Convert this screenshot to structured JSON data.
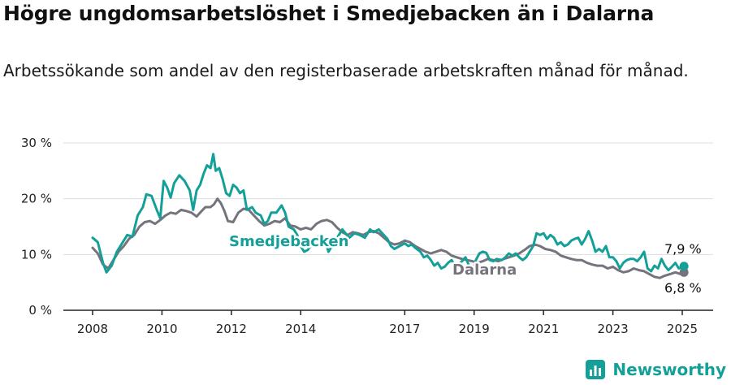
{
  "title": "Högre ungdomsarbetslöshet i Smedjebacken än i Dalarna",
  "subtitle": "Arbetssökande som andel av den registerbaserade arbetskraften månad för månad.",
  "brand": "Newsworthy",
  "colors": {
    "teal": "#14a098",
    "gray": "#77737c",
    "grid": "#dddddd"
  },
  "chart_data": {
    "type": "line",
    "title": "Högre ungdomsarbetslöshet i Smedjebacken än i Dalarna",
    "ylabel": "",
    "xlabel": "",
    "ylim": [
      0,
      30
    ],
    "y_ticks": [
      "0 %",
      "10 %",
      "20 %",
      "30 %"
    ],
    "y_tick_values": [
      0,
      10,
      20,
      30
    ],
    "x_ticks": [
      "2008",
      "2010",
      "2012",
      "2014",
      "2017",
      "2019",
      "2021",
      "2023",
      "2025"
    ],
    "x_tick_values": [
      2008,
      2010,
      2012,
      2014,
      2017,
      2019,
      2021,
      2023,
      2025
    ],
    "series": [
      {
        "name": "Smedjebacken",
        "label": "Smedjebacken",
        "color": "#14a098",
        "end_label": "7,9 %",
        "points": [
          [
            2008.0,
            13.0
          ],
          [
            2008.15,
            12.2
          ],
          [
            2008.3,
            8.5
          ],
          [
            2008.4,
            6.8
          ],
          [
            2008.55,
            8.0
          ],
          [
            2008.7,
            10.5
          ],
          [
            2008.85,
            12.0
          ],
          [
            2009.0,
            13.5
          ],
          [
            2009.15,
            13.2
          ],
          [
            2009.3,
            17.0
          ],
          [
            2009.45,
            18.5
          ],
          [
            2009.55,
            20.8
          ],
          [
            2009.7,
            20.5
          ],
          [
            2009.85,
            18.0
          ],
          [
            2009.95,
            16.5
          ],
          [
            2010.05,
            23.2
          ],
          [
            2010.15,
            22.0
          ],
          [
            2010.25,
            20.2
          ],
          [
            2010.35,
            22.8
          ],
          [
            2010.5,
            24.2
          ],
          [
            2010.65,
            23.2
          ],
          [
            2010.8,
            21.5
          ],
          [
            2010.9,
            18.0
          ],
          [
            2011.0,
            21.5
          ],
          [
            2011.1,
            22.5
          ],
          [
            2011.2,
            24.5
          ],
          [
            2011.3,
            26.0
          ],
          [
            2011.4,
            25.5
          ],
          [
            2011.48,
            28.0
          ],
          [
            2011.55,
            25.0
          ],
          [
            2011.65,
            25.5
          ],
          [
            2011.75,
            23.5
          ],
          [
            2011.85,
            21.0
          ],
          [
            2011.95,
            20.5
          ],
          [
            2012.05,
            22.5
          ],
          [
            2012.15,
            22.0
          ],
          [
            2012.25,
            21.0
          ],
          [
            2012.35,
            21.5
          ],
          [
            2012.45,
            18.0
          ],
          [
            2012.6,
            18.5
          ],
          [
            2012.7,
            17.5
          ],
          [
            2012.85,
            17.0
          ],
          [
            2012.95,
            15.5
          ],
          [
            2013.05,
            16.0
          ],
          [
            2013.15,
            17.5
          ],
          [
            2013.3,
            17.5
          ],
          [
            2013.45,
            18.8
          ],
          [
            2013.55,
            17.5
          ],
          [
            2013.65,
            15.0
          ],
          [
            2013.8,
            14.5
          ],
          [
            2013.9,
            13.5
          ],
          [
            2014.0,
            11.5
          ],
          [
            2014.1,
            10.5
          ],
          [
            2014.2,
            10.8
          ],
          [
            2014.35,
            12.0
          ],
          [
            2014.45,
            12.5
          ],
          [
            2014.55,
            13.5
          ],
          [
            2014.65,
            13.5
          ],
          [
            2014.8,
            10.5
          ],
          [
            2014.95,
            12.0
          ],
          [
            2015.1,
            13.5
          ],
          [
            2015.2,
            14.5
          ],
          [
            2015.4,
            13.0
          ],
          [
            2015.55,
            13.8
          ],
          [
            2015.7,
            13.5
          ],
          [
            2015.85,
            13.0
          ],
          [
            2016.0,
            14.5
          ],
          [
            2016.1,
            14.0
          ],
          [
            2016.25,
            14.5
          ],
          [
            2016.35,
            13.8
          ],
          [
            2016.5,
            12.8
          ],
          [
            2016.6,
            11.5
          ],
          [
            2016.7,
            11.0
          ],
          [
            2016.85,
            11.5
          ],
          [
            2017.0,
            12.0
          ],
          [
            2017.1,
            11.5
          ],
          [
            2017.2,
            11.8
          ],
          [
            2017.3,
            11.2
          ],
          [
            2017.45,
            10.5
          ],
          [
            2017.55,
            9.5
          ],
          [
            2017.65,
            9.8
          ],
          [
            2017.75,
            9.0
          ],
          [
            2017.85,
            8.0
          ],
          [
            2017.95,
            8.5
          ],
          [
            2018.05,
            7.5
          ],
          [
            2018.15,
            7.8
          ],
          [
            2018.25,
            8.5
          ],
          [
            2018.35,
            9.0
          ],
          [
            2018.45,
            8.0
          ],
          [
            2018.55,
            8.2
          ],
          [
            2018.65,
            8.8
          ],
          [
            2018.75,
            9.5
          ],
          [
            2018.85,
            8.0
          ],
          [
            2018.95,
            6.8
          ],
          [
            2019.05,
            9.0
          ],
          [
            2019.15,
            10.2
          ],
          [
            2019.25,
            10.5
          ],
          [
            2019.35,
            10.3
          ],
          [
            2019.45,
            9.0
          ],
          [
            2019.55,
            8.8
          ],
          [
            2019.65,
            9.2
          ],
          [
            2019.8,
            9.0
          ],
          [
            2019.9,
            9.5
          ],
          [
            2020.0,
            10.2
          ],
          [
            2020.1,
            9.8
          ],
          [
            2020.2,
            10.2
          ],
          [
            2020.3,
            9.5
          ],
          [
            2020.4,
            9.0
          ],
          [
            2020.5,
            9.5
          ],
          [
            2020.6,
            10.5
          ],
          [
            2020.7,
            11.5
          ],
          [
            2020.8,
            13.8
          ],
          [
            2020.9,
            13.5
          ],
          [
            2021.0,
            13.8
          ],
          [
            2021.1,
            12.8
          ],
          [
            2021.2,
            13.5
          ],
          [
            2021.3,
            13.0
          ],
          [
            2021.4,
            11.8
          ],
          [
            2021.5,
            12.2
          ],
          [
            2021.6,
            11.5
          ],
          [
            2021.7,
            11.8
          ],
          [
            2021.8,
            12.5
          ],
          [
            2021.9,
            12.8
          ],
          [
            2022.0,
            13.0
          ],
          [
            2022.1,
            11.8
          ],
          [
            2022.2,
            12.8
          ],
          [
            2022.3,
            14.2
          ],
          [
            2022.4,
            12.5
          ],
          [
            2022.5,
            10.5
          ],
          [
            2022.6,
            11.0
          ],
          [
            2022.7,
            10.5
          ],
          [
            2022.8,
            11.5
          ],
          [
            2022.9,
            9.5
          ],
          [
            2023.0,
            9.5
          ],
          [
            2023.1,
            8.8
          ],
          [
            2023.2,
            7.5
          ],
          [
            2023.3,
            8.5
          ],
          [
            2023.4,
            9.0
          ],
          [
            2023.5,
            9.2
          ],
          [
            2023.6,
            9.2
          ],
          [
            2023.7,
            8.8
          ],
          [
            2023.8,
            9.5
          ],
          [
            2023.9,
            10.5
          ],
          [
            2024.0,
            7.5
          ],
          [
            2024.1,
            7.0
          ],
          [
            2024.2,
            8.0
          ],
          [
            2024.3,
            7.5
          ],
          [
            2024.4,
            9.2
          ],
          [
            2024.5,
            8.0
          ],
          [
            2024.6,
            7.2
          ],
          [
            2024.7,
            7.8
          ],
          [
            2024.8,
            8.5
          ],
          [
            2024.9,
            7.5
          ],
          [
            2025.05,
            7.9
          ]
        ]
      },
      {
        "name": "Dalarna",
        "label": "Dalarna",
        "color": "#77737c",
        "end_label": "6,8 %",
        "points": [
          [
            2008.0,
            11.2
          ],
          [
            2008.15,
            10.2
          ],
          [
            2008.3,
            8.2
          ],
          [
            2008.45,
            7.5
          ],
          [
            2008.6,
            9.0
          ],
          [
            2008.75,
            10.5
          ],
          [
            2008.9,
            11.5
          ],
          [
            2009.05,
            12.8
          ],
          [
            2009.2,
            13.5
          ],
          [
            2009.35,
            15.0
          ],
          [
            2009.5,
            15.8
          ],
          [
            2009.65,
            16.0
          ],
          [
            2009.8,
            15.5
          ],
          [
            2009.95,
            16.2
          ],
          [
            2010.1,
            17.0
          ],
          [
            2010.25,
            17.5
          ],
          [
            2010.4,
            17.3
          ],
          [
            2010.55,
            18.0
          ],
          [
            2010.7,
            17.8
          ],
          [
            2010.85,
            17.5
          ],
          [
            2011.0,
            16.8
          ],
          [
            2011.1,
            17.5
          ],
          [
            2011.25,
            18.5
          ],
          [
            2011.4,
            18.5
          ],
          [
            2011.5,
            19.0
          ],
          [
            2011.6,
            20.0
          ],
          [
            2011.7,
            19.2
          ],
          [
            2011.8,
            17.8
          ],
          [
            2011.9,
            16.0
          ],
          [
            2012.05,
            15.8
          ],
          [
            2012.2,
            17.5
          ],
          [
            2012.35,
            18.2
          ],
          [
            2012.5,
            18.0
          ],
          [
            2012.65,
            17.0
          ],
          [
            2012.8,
            16.0
          ],
          [
            2012.95,
            15.2
          ],
          [
            2013.1,
            15.5
          ],
          [
            2013.25,
            16.0
          ],
          [
            2013.4,
            15.8
          ],
          [
            2013.55,
            16.5
          ],
          [
            2013.7,
            15.2
          ],
          [
            2013.85,
            15.0
          ],
          [
            2014.0,
            14.5
          ],
          [
            2014.15,
            14.8
          ],
          [
            2014.3,
            14.5
          ],
          [
            2014.45,
            15.5
          ],
          [
            2014.6,
            16.0
          ],
          [
            2014.75,
            16.2
          ],
          [
            2014.9,
            15.8
          ],
          [
            2015.05,
            14.8
          ],
          [
            2015.2,
            14.0
          ],
          [
            2015.35,
            13.5
          ],
          [
            2015.5,
            14.0
          ],
          [
            2015.65,
            13.8
          ],
          [
            2015.8,
            13.5
          ],
          [
            2015.95,
            14.0
          ],
          [
            2016.1,
            14.2
          ],
          [
            2016.25,
            13.8
          ],
          [
            2016.4,
            13.0
          ],
          [
            2016.55,
            12.2
          ],
          [
            2016.7,
            11.8
          ],
          [
            2016.85,
            12.0
          ],
          [
            2017.0,
            12.5
          ],
          [
            2017.15,
            12.2
          ],
          [
            2017.3,
            11.5
          ],
          [
            2017.45,
            11.0
          ],
          [
            2017.6,
            10.5
          ],
          [
            2017.75,
            10.2
          ],
          [
            2017.9,
            10.5
          ],
          [
            2018.05,
            10.8
          ],
          [
            2018.2,
            10.5
          ],
          [
            2018.35,
            9.8
          ],
          [
            2018.5,
            9.5
          ],
          [
            2018.65,
            9.2
          ],
          [
            2018.8,
            9.0
          ],
          [
            2018.95,
            8.8
          ],
          [
            2019.1,
            8.5
          ],
          [
            2019.25,
            8.8
          ],
          [
            2019.4,
            9.2
          ],
          [
            2019.55,
            9.0
          ],
          [
            2019.7,
            8.8
          ],
          [
            2019.85,
            9.2
          ],
          [
            2020.0,
            9.5
          ],
          [
            2020.15,
            9.8
          ],
          [
            2020.3,
            10.2
          ],
          [
            2020.45,
            10.8
          ],
          [
            2020.6,
            11.5
          ],
          [
            2020.75,
            11.8
          ],
          [
            2020.9,
            11.5
          ],
          [
            2021.05,
            11.0
          ],
          [
            2021.2,
            10.8
          ],
          [
            2021.35,
            10.5
          ],
          [
            2021.5,
            9.8
          ],
          [
            2021.65,
            9.5
          ],
          [
            2021.8,
            9.2
          ],
          [
            2021.95,
            9.0
          ],
          [
            2022.1,
            9.0
          ],
          [
            2022.25,
            8.5
          ],
          [
            2022.4,
            8.2
          ],
          [
            2022.55,
            8.0
          ],
          [
            2022.7,
            8.0
          ],
          [
            2022.85,
            7.5
          ],
          [
            2023.0,
            7.8
          ],
          [
            2023.15,
            7.2
          ],
          [
            2023.3,
            6.8
          ],
          [
            2023.45,
            7.0
          ],
          [
            2023.6,
            7.5
          ],
          [
            2023.75,
            7.2
          ],
          [
            2023.9,
            7.0
          ],
          [
            2024.05,
            6.5
          ],
          [
            2024.2,
            6.0
          ],
          [
            2024.35,
            5.8
          ],
          [
            2024.5,
            6.2
          ],
          [
            2024.65,
            6.5
          ],
          [
            2024.8,
            6.8
          ],
          [
            2024.95,
            6.5
          ],
          [
            2025.05,
            6.8
          ]
        ]
      }
    ]
  }
}
